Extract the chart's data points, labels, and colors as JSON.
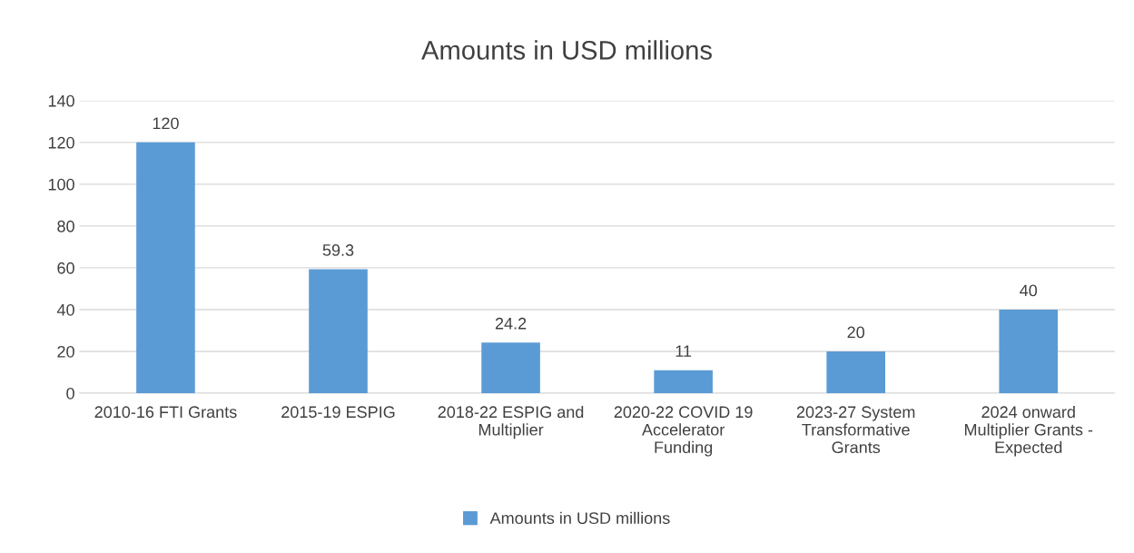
{
  "chart_data": {
    "type": "bar",
    "title": "Amounts in USD millions",
    "categories": [
      "2010-16 FTI Grants",
      "2015-19 ESPIG",
      "2018-22 ESPIG and\nMultiplier",
      "2020-22 COVID 19\nAccelerator\nFunding",
      "2023-27 System\nTransformative\nGrants",
      "2024 onward\nMultiplier Grants -\nExpected"
    ],
    "series": [
      {
        "name": "Amounts in USD millions",
        "color": "#5b9bd5",
        "values": [
          120,
          59.3,
          24.2,
          11,
          20,
          40
        ]
      }
    ],
    "ylim": [
      0,
      140
    ],
    "yticks": [
      0,
      20,
      40,
      60,
      80,
      100,
      120,
      140
    ],
    "grid": "y",
    "legend": "bottom",
    "data_labels": true
  }
}
